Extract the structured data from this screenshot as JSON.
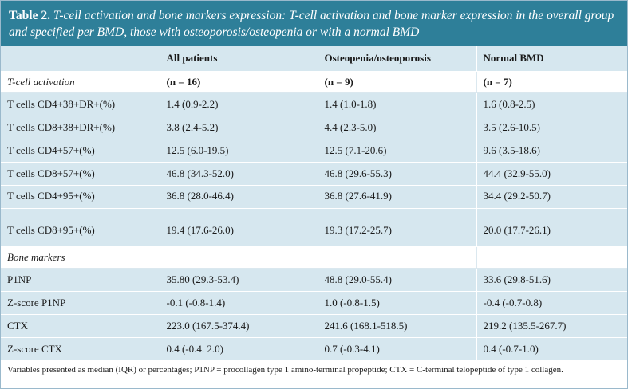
{
  "caption": {
    "label": "Table 2.",
    "text": "T-cell activation and bone markers expression: T-cell activation and bone marker expression in the overall group and specified per BMD, those with osteoporosis/osteopenia or with a normal BMD"
  },
  "columns": [
    "",
    "All patients",
    "Osteopenia/osteoporosis",
    "Normal BMD"
  ],
  "sections": [
    {
      "title": "T-cell activation",
      "counts": [
        "(n = 16)",
        "(n = 9)",
        "(n = 7)"
      ],
      "rows": [
        {
          "label": "T cells CD4+38+DR+(%)",
          "values": [
            "1.4 (0.9-2.2)",
            "1.4 (1.0-1.8)",
            "1.6 (0.8-2.5)"
          ]
        },
        {
          "label": "T cells CD8+38+DR+(%)",
          "values": [
            "3.8 (2.4-5.2)",
            "4.4 (2.3-5.0)",
            "3.5 (2.6-10.5)"
          ]
        },
        {
          "label": "T cells CD4+57+(%)",
          "values": [
            "12.5 (6.0-19.5)",
            "12.5 (7.1-20.6)",
            "9.6 (3.5-18.6)"
          ]
        },
        {
          "label": "T cells CD8+57+(%)",
          "values": [
            "46.8 (34.3-52.0)",
            "46.8 (29.6-55.3)",
            "44.4 (32.9-55.0)"
          ]
        },
        {
          "label": "T cells CD4+95+(%)",
          "values": [
            "36.8 (28.0-46.4)",
            "36.8 (27.6-41.9)",
            "34.4 (29.2-50.7)"
          ]
        },
        {
          "label": "T cells CD8+95+(%)",
          "values": [
            "19.4 (17.6-26.0)",
            "19.3 (17.2-25.7)",
            "20.0 (17.7-26.1)"
          ]
        }
      ]
    },
    {
      "title": "Bone markers",
      "rows": [
        {
          "label": "P1NP",
          "values": [
            "35.80 (29.3-53.4)",
            "48.8 (29.0-55.4)",
            "33.6 (29.8-51.6)"
          ]
        },
        {
          "label": "Z-score P1NP",
          "values": [
            "-0.1 (-0.8-1.4)",
            "1.0 (-0.8-1.5)",
            "-0.4 (-0.7-0.8)"
          ]
        },
        {
          "label": "CTX",
          "values": [
            "223.0 (167.5-374.4)",
            "241.6 (168.1-518.5)",
            "219.2 (135.5-267.7)"
          ]
        },
        {
          "label": "Z-score CTX",
          "values": [
            "0.4 (-0.4. 2.0)",
            "0.7 (-0.3-4.1)",
            "0.4 (-0.7-1.0)"
          ]
        }
      ]
    }
  ],
  "footnote": "Variables presented as median (IQR) or percentages; P1NP = procollagen type 1 amino-terminal propeptide; CTX = C-terminal telopeptide of type 1 collagen."
}
